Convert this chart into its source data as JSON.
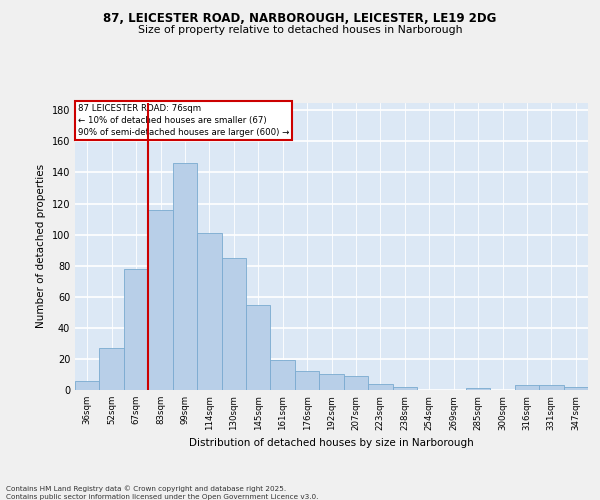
{
  "title1": "87, LEICESTER ROAD, NARBOROUGH, LEICESTER, LE19 2DG",
  "title2": "Size of property relative to detached houses in Narborough",
  "xlabel": "Distribution of detached houses by size in Narborough",
  "ylabel": "Number of detached properties",
  "bar_color": "#b8cfe8",
  "bar_edge_color": "#7aaad0",
  "background_color": "#dce8f5",
  "grid_color": "#ffffff",
  "fig_background": "#f0f0f0",
  "categories": [
    "36sqm",
    "52sqm",
    "67sqm",
    "83sqm",
    "99sqm",
    "114sqm",
    "130sqm",
    "145sqm",
    "161sqm",
    "176sqm",
    "192sqm",
    "207sqm",
    "223sqm",
    "238sqm",
    "254sqm",
    "269sqm",
    "285sqm",
    "300sqm",
    "316sqm",
    "331sqm",
    "347sqm"
  ],
  "values": [
    6,
    27,
    78,
    116,
    146,
    101,
    85,
    55,
    19,
    12,
    10,
    9,
    4,
    2,
    0,
    0,
    1,
    0,
    3,
    3,
    2
  ],
  "ylim": [
    0,
    185
  ],
  "yticks": [
    0,
    20,
    40,
    60,
    80,
    100,
    120,
    140,
    160,
    180
  ],
  "vline_x_index": 2.5,
  "vline_color": "#cc0000",
  "annotation_text": "87 LEICESTER ROAD: 76sqm\n← 10% of detached houses are smaller (67)\n90% of semi-detached houses are larger (600) →",
  "annotation_box_color": "#ffffff",
  "annotation_box_edge_color": "#cc0000",
  "footer_line1": "Contains HM Land Registry data © Crown copyright and database right 2025.",
  "footer_line2": "Contains public sector information licensed under the Open Government Licence v3.0."
}
